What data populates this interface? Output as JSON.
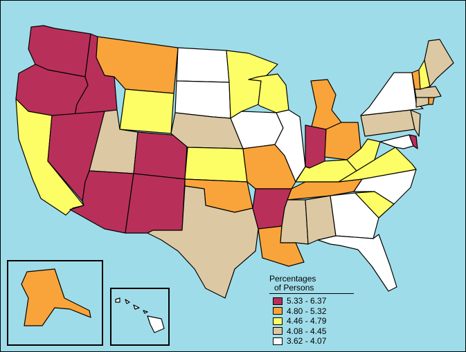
{
  "legend": {
    "title_line1": "Percentages",
    "title_line2": "of Persons",
    "items": [
      {
        "label": "5.33 - 6.37",
        "color": "#b8305a"
      },
      {
        "label": "4.80 - 5.32",
        "color": "#f9a43a"
      },
      {
        "label": "4.46 - 4.79",
        "color": "#fdfd66"
      },
      {
        "label": "4.08 - 4.45",
        "color": "#dcc9a3"
      },
      {
        "label": "3.62 - 4.07",
        "color": "#ffffff"
      }
    ]
  },
  "colors": {
    "water": "#9fdce9",
    "outline": "#000000"
  },
  "states": [
    {
      "name": "Washington",
      "class": 0
    },
    {
      "name": "Oregon",
      "class": 0
    },
    {
      "name": "California",
      "class": 2
    },
    {
      "name": "Idaho",
      "class": 0
    },
    {
      "name": "Nevada",
      "class": 0
    },
    {
      "name": "Montana",
      "class": 1
    },
    {
      "name": "Wyoming",
      "class": 2
    },
    {
      "name": "Utah",
      "class": 3
    },
    {
      "name": "Arizona",
      "class": 0
    },
    {
      "name": "Colorado",
      "class": 0
    },
    {
      "name": "New Mexico",
      "class": 0
    },
    {
      "name": "North Dakota",
      "class": 4
    },
    {
      "name": "South Dakota",
      "class": 4
    },
    {
      "name": "Nebraska",
      "class": 3
    },
    {
      "name": "Kansas",
      "class": 2
    },
    {
      "name": "Oklahoma",
      "class": 1
    },
    {
      "name": "Texas",
      "class": 3
    },
    {
      "name": "Minnesota",
      "class": 2
    },
    {
      "name": "Iowa",
      "class": 4
    },
    {
      "name": "Missouri",
      "class": 1
    },
    {
      "name": "Arkansas",
      "class": 0
    },
    {
      "name": "Louisiana",
      "class": 1
    },
    {
      "name": "Wisconsin",
      "class": 2
    },
    {
      "name": "Illinois",
      "class": 4
    },
    {
      "name": "Michigan",
      "class": 1
    },
    {
      "name": "Indiana",
      "class": 0
    },
    {
      "name": "Ohio",
      "class": 1
    },
    {
      "name": "Kentucky",
      "class": 2
    },
    {
      "name": "Tennessee",
      "class": 1
    },
    {
      "name": "Mississippi",
      "class": 3
    },
    {
      "name": "Alabama",
      "class": 3
    },
    {
      "name": "Georgia",
      "class": 4
    },
    {
      "name": "Florida",
      "class": 4
    },
    {
      "name": "South Carolina",
      "class": 2
    },
    {
      "name": "North Carolina",
      "class": 4
    },
    {
      "name": "Virginia",
      "class": 2
    },
    {
      "name": "West Virginia",
      "class": 2
    },
    {
      "name": "Pennsylvania",
      "class": 3
    },
    {
      "name": "New York",
      "class": 4
    },
    {
      "name": "Maryland",
      "class": 4
    },
    {
      "name": "Delaware",
      "class": 0
    },
    {
      "name": "New Jersey",
      "class": 3
    },
    {
      "name": "Connecticut",
      "class": 3
    },
    {
      "name": "Rhode Island",
      "class": 1
    },
    {
      "name": "Massachusetts",
      "class": 3
    },
    {
      "name": "Vermont",
      "class": 1
    },
    {
      "name": "New Hampshire",
      "class": 2
    },
    {
      "name": "Maine",
      "class": 3
    },
    {
      "name": "Alaska",
      "class": 1
    },
    {
      "name": "Hawaii",
      "class": 4
    }
  ]
}
